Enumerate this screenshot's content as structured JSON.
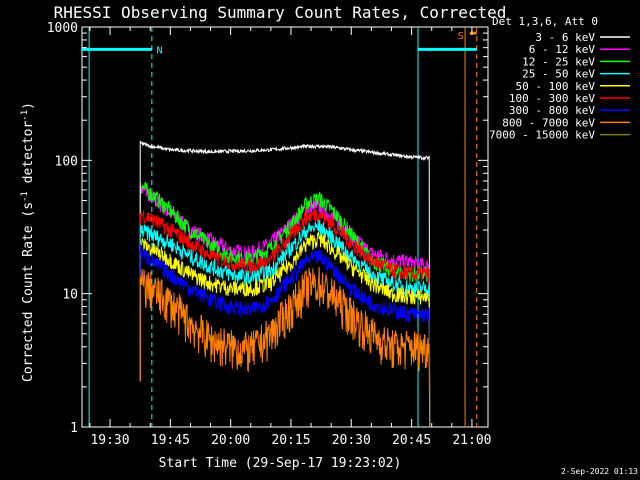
{
  "chart_data": {
    "type": "line",
    "title": "RHESSI Observing Summary Count Rates, Corrected",
    "xlabel": "Start Time (29-Sep-17 19:23:02)",
    "ylabel_main": "Corrected Count Rate (s",
    "ylabel_sup1": "-1",
    "ylabel_mid": " detector",
    "ylabel_sup2": "-1",
    "ylabel_end": ")",
    "y_scale": "log",
    "ylim": [
      1,
      1000
    ],
    "xlim_minutes": [
      23.03,
      124.0
    ],
    "x_ticks": [
      {
        "m": 30,
        "label": "19:30"
      },
      {
        "m": 45,
        "label": "19:45"
      },
      {
        "m": 60,
        "label": "20:00"
      },
      {
        "m": 75,
        "label": "20:15"
      },
      {
        "m": 90,
        "label": "20:30"
      },
      {
        "m": 105,
        "label": "20:45"
      },
      {
        "m": 120,
        "label": "21:00"
      }
    ],
    "y_ticks": [
      {
        "v": 1,
        "label": "1"
      },
      {
        "v": 10,
        "label": "10"
      },
      {
        "v": 100,
        "label": "100"
      },
      {
        "v": 1000,
        "label": "1000"
      }
    ],
    "legend_title": "Det 1,3,6, Att 0",
    "legend_position": "right",
    "data_span_minutes": [
      37.5,
      109.5
    ],
    "series": [
      {
        "name": "3 - 6 keV",
        "color": "#ffffff",
        "points": [
          [
            37.5,
            135
          ],
          [
            40,
            128
          ],
          [
            45,
            120
          ],
          [
            50,
            118
          ],
          [
            55,
            116
          ],
          [
            60,
            117
          ],
          [
            65,
            118
          ],
          [
            70,
            120
          ],
          [
            75,
            124
          ],
          [
            80,
            128
          ],
          [
            85,
            126
          ],
          [
            90,
            120
          ],
          [
            95,
            115
          ],
          [
            100,
            110
          ],
          [
            105,
            106
          ],
          [
            109.5,
            104
          ]
        ]
      },
      {
        "name": "6 - 12 keV",
        "color": "#ff00ff",
        "points": [
          [
            37.5,
            62
          ],
          [
            40,
            55
          ],
          [
            45,
            40
          ],
          [
            50,
            30
          ],
          [
            55,
            25
          ],
          [
            60,
            21
          ],
          [
            65,
            20
          ],
          [
            70,
            24
          ],
          [
            75,
            33
          ],
          [
            79,
            44
          ],
          [
            82,
            45
          ],
          [
            85,
            38
          ],
          [
            90,
            27
          ],
          [
            95,
            20
          ],
          [
            100,
            18
          ],
          [
            105,
            17
          ],
          [
            109.5,
            16
          ]
        ]
      },
      {
        "name": "12 - 25 keV",
        "color": "#00ff00",
        "points": [
          [
            37.5,
            65
          ],
          [
            40,
            57
          ],
          [
            45,
            42
          ],
          [
            50,
            30
          ],
          [
            55,
            23
          ],
          [
            60,
            19
          ],
          [
            65,
            18
          ],
          [
            70,
            22
          ],
          [
            75,
            33
          ],
          [
            79,
            48
          ],
          [
            82,
            52
          ],
          [
            85,
            43
          ],
          [
            90,
            28
          ],
          [
            95,
            18
          ],
          [
            100,
            15
          ],
          [
            105,
            14
          ],
          [
            109.5,
            14
          ]
        ]
      },
      {
        "name": "25 - 50 keV",
        "color": "#00ffff",
        "points": [
          [
            37.5,
            30
          ],
          [
            40,
            28
          ],
          [
            45,
            24
          ],
          [
            50,
            19
          ],
          [
            55,
            16
          ],
          [
            60,
            14
          ],
          [
            65,
            13
          ],
          [
            70,
            15
          ],
          [
            75,
            22
          ],
          [
            79,
            30
          ],
          [
            82,
            32
          ],
          [
            85,
            27
          ],
          [
            90,
            19
          ],
          [
            95,
            14
          ],
          [
            100,
            12
          ],
          [
            105,
            11
          ],
          [
            109.5,
            11
          ]
        ]
      },
      {
        "name": "50 - 100 keV",
        "color": "#ffff00",
        "points": [
          [
            37.5,
            24
          ],
          [
            40,
            22
          ],
          [
            45,
            18
          ],
          [
            50,
            14
          ],
          [
            55,
            12
          ],
          [
            60,
            11
          ],
          [
            65,
            11
          ],
          [
            70,
            12
          ],
          [
            75,
            17
          ],
          [
            79,
            24
          ],
          [
            82,
            26
          ],
          [
            85,
            22
          ],
          [
            90,
            16
          ],
          [
            95,
            12
          ],
          [
            100,
            10
          ],
          [
            105,
            9.5
          ],
          [
            109.5,
            9.5
          ]
        ]
      },
      {
        "name": "100 - 300 keV",
        "color": "#ff0000",
        "points": [
          [
            37.5,
            40
          ],
          [
            40,
            37
          ],
          [
            45,
            30
          ],
          [
            50,
            24
          ],
          [
            55,
            19
          ],
          [
            60,
            17
          ],
          [
            65,
            16
          ],
          [
            70,
            18
          ],
          [
            75,
            27
          ],
          [
            79,
            38
          ],
          [
            82,
            40
          ],
          [
            85,
            34
          ],
          [
            90,
            24
          ],
          [
            95,
            18
          ],
          [
            100,
            15
          ],
          [
            105,
            14
          ],
          [
            109.5,
            14
          ]
        ]
      },
      {
        "name": "300 - 800 keV",
        "color": "#0000ff",
        "points": [
          [
            37.5,
            21
          ],
          [
            40,
            18
          ],
          [
            45,
            14
          ],
          [
            50,
            11
          ],
          [
            55,
            9
          ],
          [
            60,
            8
          ],
          [
            65,
            7.5
          ],
          [
            70,
            9
          ],
          [
            75,
            13
          ],
          [
            79,
            18
          ],
          [
            82,
            19
          ],
          [
            85,
            16
          ],
          [
            90,
            11
          ],
          [
            95,
            8.5
          ],
          [
            100,
            7.5
          ],
          [
            105,
            7
          ],
          [
            109.5,
            7
          ]
        ]
      },
      {
        "name": "800 - 7000 keV",
        "color": "#ff8000",
        "points": [
          [
            37.5,
            12
          ],
          [
            40,
            11
          ],
          [
            45,
            8.5
          ],
          [
            50,
            6
          ],
          [
            55,
            4.5
          ],
          [
            60,
            4
          ],
          [
            65,
            3.8
          ],
          [
            70,
            5
          ],
          [
            75,
            8
          ],
          [
            79,
            11.5
          ],
          [
            82,
            12
          ],
          [
            85,
            10
          ],
          [
            90,
            7
          ],
          [
            95,
            5
          ],
          [
            100,
            4
          ],
          [
            105,
            4
          ],
          [
            109.5,
            4
          ]
        ]
      },
      {
        "name": "7000 - 15000 keV",
        "color": "#808000",
        "points": []
      }
    ],
    "vlines": [
      {
        "m": 24.8,
        "color": "#00ffff",
        "style": "solid"
      },
      {
        "m": 40.4,
        "color": "#00ffff",
        "style": "dashed"
      },
      {
        "m": 106.6,
        "color": "#00ffff",
        "style": "solid"
      },
      {
        "m": 118.3,
        "color": "#ff8000",
        "style": "solid"
      },
      {
        "m": 121.2,
        "color": "#ff8000",
        "style": "dashed"
      }
    ],
    "hbars": [
      {
        "m1": 23.03,
        "m2": 40.4,
        "v": 680,
        "color": "#00ffff"
      },
      {
        "m1": 106.6,
        "m2": 121.2,
        "v": 680,
        "color": "#00ffff"
      },
      {
        "m1": 119.5,
        "m2": 121.2,
        "v": 900,
        "color": "#ff8000"
      }
    ],
    "annotations": [
      {
        "text": "N",
        "m": 42.3,
        "v": 680,
        "color": "#00ffff"
      },
      {
        "text": "S",
        "m": 117.2,
        "v": 870,
        "color": "#ff8000"
      }
    ]
  },
  "footer_date": "2-Sep-2022 01:13"
}
